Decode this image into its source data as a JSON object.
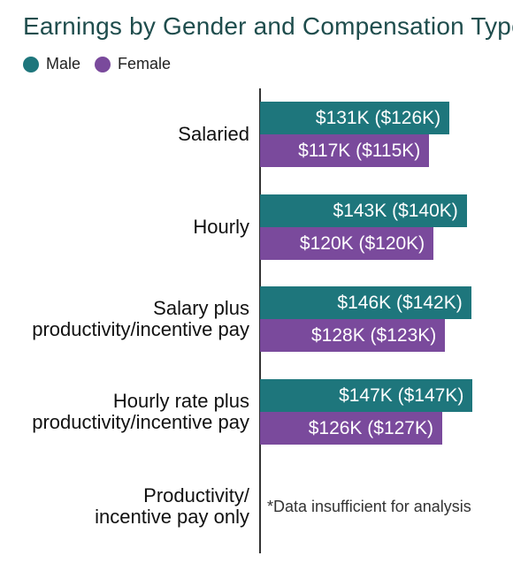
{
  "chart_data": {
    "type": "bar",
    "orientation": "horizontal",
    "title": "Earnings by Gender and Compensation Type",
    "categories": [
      "Salaried",
      "Hourly",
      "Salary plus\nproductivity/incentive pay",
      "Hourly rate plus\nproductivity/incentive pay",
      "Productivity/\nincentive pay only"
    ],
    "series": [
      {
        "name": "Male",
        "color": "#1e767c",
        "values": [
          131,
          143,
          146,
          147,
          null
        ],
        "labels": [
          "$131K ($126K)",
          "$143K ($140K)",
          "$146K ($142K)",
          "$147K ($147K)",
          null
        ]
      },
      {
        "name": "Female",
        "color": "#7a4a9c",
        "values": [
          117,
          120,
          128,
          126,
          null
        ],
        "labels": [
          "$117K ($115K)",
          "$120K ($120K)",
          "$128K ($123K)",
          "$126K ($127K)",
          null
        ]
      }
    ],
    "annotations": [
      {
        "category_index": 4,
        "text": "*Data insufficient for analysis"
      }
    ],
    "legend_position": "top-left",
    "grid": false,
    "xlim": [
      0,
      160
    ]
  }
}
